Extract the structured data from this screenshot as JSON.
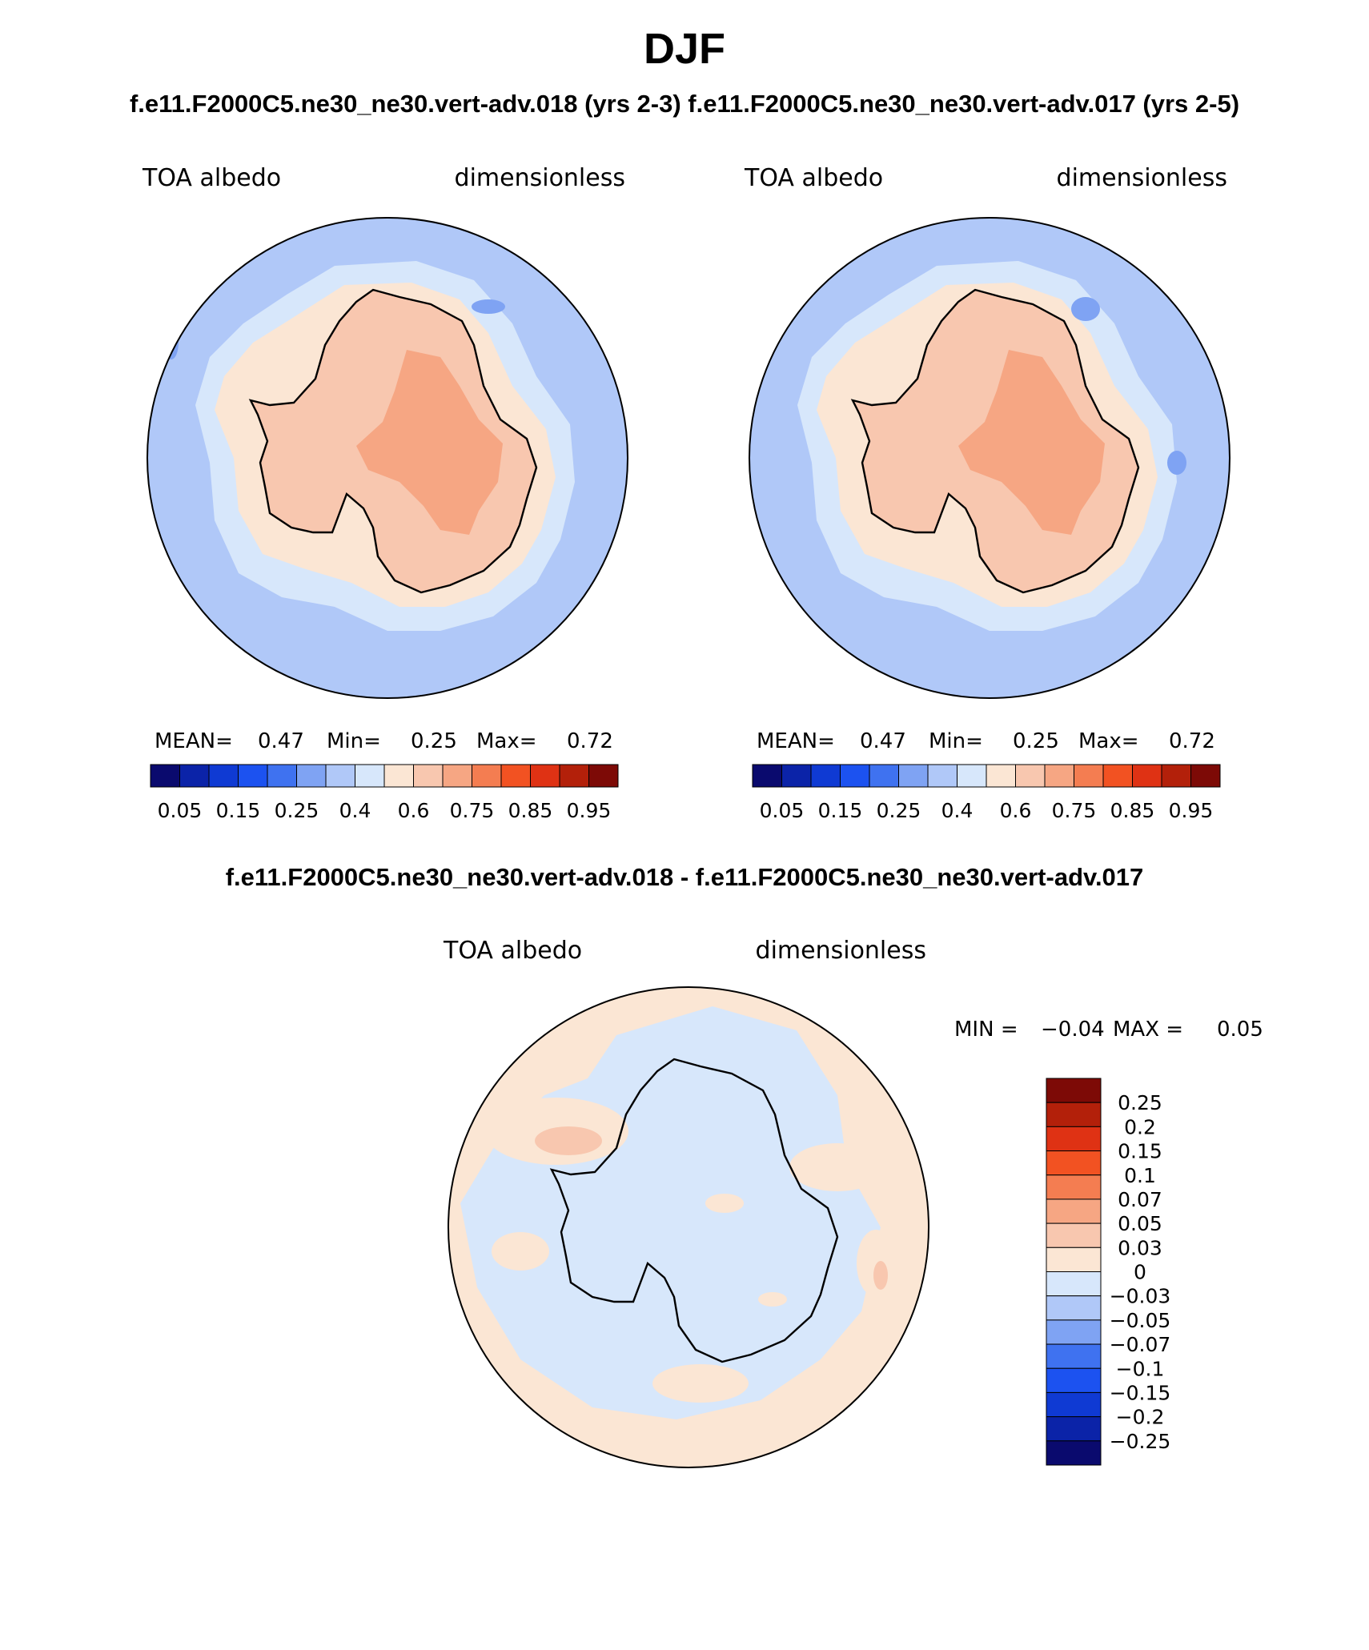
{
  "title": "DJF",
  "subtitle": "f.e11.F2000C5.ne30_ne30.vert-adv.018 (yrs 2-3)  f.e11.F2000C5.ne30_ne30.vert-adv.017 (yrs 2-5)",
  "diff_title": "f.e11.F2000C5.ne30_ne30.vert-adv.018 - f.e11.F2000C5.ne30_ne30.vert-adv.017",
  "panels": [
    {
      "variable": "TOA albedo",
      "units": "dimensionless",
      "stats": {
        "mean_label": "MEAN=",
        "mean": "0.47",
        "min_label": "Min=",
        "min": "0.25",
        "max_label": "Max=",
        "max": "0.72"
      }
    },
    {
      "variable": "TOA albedo",
      "units": "dimensionless",
      "stats": {
        "mean_label": "MEAN=",
        "mean": "0.47",
        "min_label": "Min=",
        "min": "0.25",
        "max_label": "Max=",
        "max": "0.72"
      }
    }
  ],
  "diff_panel": {
    "variable": "TOA albedo",
    "units": "dimensionless",
    "stats": {
      "min_label": "MIN =",
      "min": "−0.04",
      "max_label": "MAX =",
      "max": "0.05"
    }
  },
  "colorbar_abs": {
    "colors": [
      "#0a0a6e",
      "#0b23a8",
      "#0f3ad3",
      "#1c52f0",
      "#3f72f0",
      "#7fa3f3",
      "#b0c8f8",
      "#d7e7fb",
      "#fbe6d4",
      "#f8c7af",
      "#f6a683",
      "#f47d51",
      "#f25222",
      "#df3214",
      "#b3200a",
      "#7d0a06"
    ],
    "labels": [
      "0.05",
      "0.15",
      "0.25",
      "0.4",
      "0.6",
      "0.75",
      "0.85",
      "0.95"
    ]
  },
  "colorbar_diff": {
    "colors": [
      "#7d0a06",
      "#b3200a",
      "#df3214",
      "#f25222",
      "#f47d51",
      "#f6a683",
      "#f8c7af",
      "#fbe6d4",
      "#d7e7fb",
      "#b0c8f8",
      "#7fa3f3",
      "#3f72f0",
      "#1c52f0",
      "#0f3ad3",
      "#0b23a8",
      "#0a0a6e"
    ],
    "labels": [
      "0.25",
      "0.2",
      "0.15",
      "0.1",
      "0.07",
      "0.05",
      "0.03",
      "0",
      "−0.03",
      "−0.05",
      "−0.07",
      "−0.1",
      "−0.15",
      "−0.2",
      "−0.25"
    ]
  },
  "map_colors": {
    "ocean": "#b0c8f8",
    "sea_ice_edge": "#d7e7fb",
    "pack": "#fbe6d4",
    "land": "#f8c7af",
    "plateau": "#f6a683",
    "diff_background": "#d7e7fb",
    "diff_positive": "#fbe6d4",
    "diff_strong": "#f8c7af"
  }
}
